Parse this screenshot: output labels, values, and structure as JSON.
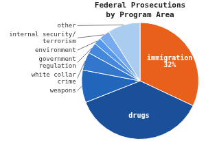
{
  "chart_data": {
    "type": "pie",
    "title": "Federal Prosecutions\nby Program Area",
    "categories": [
      "immigration\n32%",
      "drugs",
      "weapons",
      "white collar\ncrime",
      "government\nregulation",
      "environment",
      "internal security/\nterrorism",
      "other"
    ],
    "values": [
      32,
      37,
      9,
      5,
      3,
      2,
      3,
      9
    ],
    "colors": [
      "#E8601A",
      "#1A4F99",
      "#2266BB",
      "#3377CC",
      "#4488DD",
      "#5599EE",
      "#77AAEE",
      "#AACCEE"
    ]
  }
}
